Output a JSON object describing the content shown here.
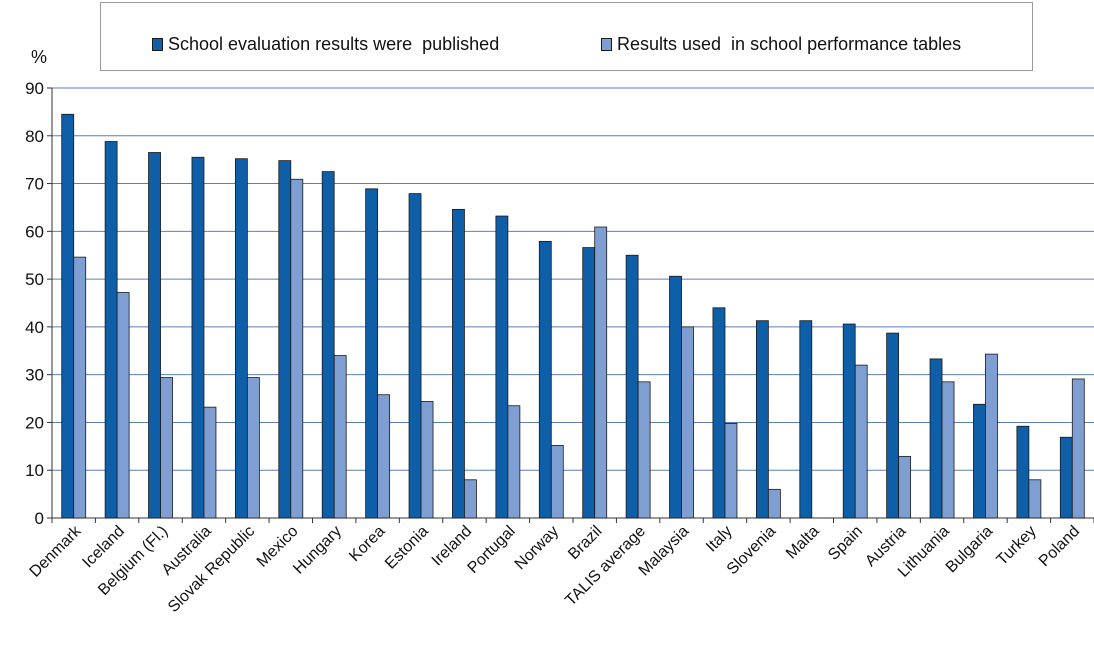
{
  "chart_data": {
    "type": "bar",
    "ylabel": "%",
    "ylim": [
      0,
      90
    ],
    "yticks": [
      0,
      10,
      20,
      30,
      40,
      50,
      60,
      70,
      80,
      90
    ],
    "grid": true,
    "legend_position": "top",
    "categories": [
      "Denmark",
      "Iceland",
      "Belgium (Fl.)",
      "Australia",
      "Slovak Republic",
      "Mexico",
      "Hungary",
      "Korea",
      "Estonia",
      "Ireland",
      "Portugal",
      "Norway",
      "Brazil",
      "TALIS average",
      "Malaysia",
      "Italy",
      "Slovenia",
      "Malta",
      "Spain",
      "Austria",
      "Lithuania",
      "Bulgaria",
      "Turkey",
      "Poland"
    ],
    "series": [
      {
        "name": "School evaluation results were  published",
        "color": "#0e5ea8",
        "values": [
          84.5,
          78.8,
          76.5,
          75.5,
          75.2,
          74.8,
          72.5,
          68.9,
          67.9,
          64.6,
          63.2,
          57.9,
          56.6,
          55.0,
          50.6,
          44.0,
          41.3,
          41.3,
          40.6,
          38.7,
          33.3,
          23.8,
          19.2,
          16.9
        ]
      },
      {
        "name": "Results used  in school performance tables",
        "color": "#7f9fd3",
        "values": [
          54.6,
          47.2,
          29.4,
          23.2,
          29.4,
          70.9,
          34.0,
          25.8,
          24.4,
          8.0,
          23.5,
          15.2,
          60.9,
          28.5,
          40.0,
          19.8,
          6.0,
          0,
          32.0,
          12.9,
          28.5,
          34.3,
          8.0,
          29.1
        ]
      }
    ]
  }
}
